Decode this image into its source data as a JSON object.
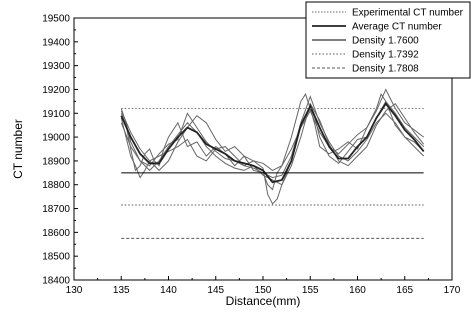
{
  "chart_data": {
    "type": "line",
    "xlabel": "Distance(mm)",
    "ylabel": "CT number",
    "xlim": [
      130,
      170
    ],
    "ylim": [
      18400,
      19500
    ],
    "x_ticks": [
      130,
      135,
      140,
      145,
      150,
      155,
      160,
      165,
      170
    ],
    "y_ticks": [
      18400,
      18500,
      18600,
      18700,
      18800,
      18900,
      19000,
      19100,
      19200,
      19300,
      19400,
      19500
    ],
    "grid": false,
    "legend_position": "top-right",
    "legend": [
      {
        "label": "Experimental CT number",
        "series": "experimental"
      },
      {
        "label": "Average CT number",
        "series": "average"
      },
      {
        "label": "Density 1.7600",
        "series": "d17600"
      },
      {
        "label": "Density 1.7392",
        "series": "d17392"
      },
      {
        "label": "Density 1.7808",
        "series": "d17808"
      }
    ],
    "series": [
      {
        "id": "experimental",
        "name": "Experimental CT number",
        "kind": "multi",
        "color": "#666666",
        "curves": [
          {
            "x": [
              135,
              135.5,
              136,
              136.5,
              137,
              137.5,
              138,
              138.5,
              139,
              139.5,
              140,
              141,
              142,
              143,
              144,
              145,
              146,
              147,
              148,
              149,
              150,
              150.5,
              151,
              151.5,
              152,
              153,
              154,
              154.5,
              155,
              155.5,
              156,
              157,
              158,
              159,
              160,
              161,
              162,
              162.5,
              163,
              164,
              165,
              166,
              167
            ],
            "y": [
              19100,
              19050,
              18950,
              18860,
              18880,
              18930,
              18950,
              18900,
              18880,
              18950,
              19000,
              19060,
              18960,
              18980,
              18920,
              18960,
              18930,
              18880,
              18920,
              18860,
              18850,
              18800,
              18780,
              18850,
              18880,
              19000,
              19150,
              19180,
              19120,
              19050,
              18960,
              18930,
              18950,
              18980,
              18950,
              19040,
              19120,
              19180,
              19150,
              19050,
              19000,
              18960,
              18920
            ]
          },
          {
            "x": [
              135,
              135.5,
              136,
              136.5,
              137,
              137.5,
              138,
              139,
              140,
              141,
              142,
              143,
              144,
              145,
              146,
              147,
              148,
              149,
              150,
              150.5,
              151,
              151.5,
              152,
              153,
              154,
              155,
              155.5,
              156,
              157,
              158,
              159,
              160,
              161,
              162,
              163,
              164,
              165,
              166,
              167
            ],
            "y": [
              19080,
              19000,
              18920,
              18880,
              18830,
              18860,
              18900,
              18920,
              18940,
              18960,
              18990,
              18920,
              18900,
              18950,
              18960,
              18920,
              18880,
              18900,
              18870,
              18760,
              18720,
              18740,
              18800,
              18900,
              19050,
              19120,
              19080,
              19000,
              18920,
              18890,
              18940,
              18990,
              19000,
              19080,
              19150,
              19100,
              19040,
              19000,
              18960
            ]
          },
          {
            "x": [
              135,
              135.5,
              136,
              137,
              138,
              139,
              140,
              141,
              142,
              143,
              144,
              145,
              146,
              147,
              148,
              149,
              150,
              151,
              152,
              153,
              154,
              155,
              156,
              157,
              158,
              159,
              160,
              161,
              162,
              163,
              164,
              165,
              166,
              167
            ],
            "y": [
              19120,
              19060,
              18980,
              18900,
              18860,
              18900,
              18960,
              19010,
              19060,
              19020,
              18960,
              18920,
              18890,
              18870,
              18860,
              18880,
              18840,
              18820,
              18800,
              18880,
              19000,
              19140,
              19070,
              18970,
              18900,
              18880,
              18920,
              18960,
              19050,
              19110,
              19140,
              19080,
              19020,
              18970
            ]
          },
          {
            "x": [
              135,
              136,
              137,
              138,
              139,
              140,
              141,
              142,
              143,
              144,
              145,
              146,
              147,
              148,
              149,
              150,
              151,
              152,
              153,
              154,
              155,
              156,
              157,
              158,
              159,
              160,
              161,
              162,
              163,
              164,
              165,
              166,
              167
            ],
            "y": [
              19060,
              18960,
              18900,
              18880,
              18930,
              18970,
              18990,
              19100,
              19040,
              18980,
              18940,
              18910,
              18900,
              18880,
              18870,
              18850,
              18830,
              18840,
              18920,
              19060,
              19170,
              19060,
              18980,
              18920,
              18900,
              18940,
              18990,
              19060,
              19100,
              19060,
              19000,
              18980,
              18940
            ]
          },
          {
            "x": [
              135,
              136,
              137,
              138,
              139,
              140,
              141,
              142,
              143,
              144,
              145,
              146,
              147,
              148,
              149,
              150,
              151,
              152,
              153,
              154,
              155,
              156,
              157,
              158,
              159,
              160,
              161,
              162,
              163,
              164,
              165,
              166,
              167
            ],
            "y": [
              19110,
              19020,
              18950,
              18900,
              18860,
              18900,
              18980,
              19040,
              19090,
              19060,
              18990,
              18940,
              18960,
              18920,
              18900,
              18890,
              18860,
              18880,
              18950,
              19040,
              19110,
              19020,
              18960,
              18930,
              18970,
              19010,
              19040,
              19110,
              19200,
              19120,
              19060,
              19030,
              19000
            ]
          }
        ]
      },
      {
        "id": "average",
        "name": "Average CT number",
        "kind": "line",
        "color": "#222222",
        "x": [
          135,
          136,
          137,
          138,
          139,
          140,
          141,
          142,
          143,
          144,
          145,
          146,
          147,
          148,
          149,
          150,
          151,
          152,
          153,
          154,
          155,
          156,
          157,
          158,
          159,
          160,
          161,
          162,
          163,
          164,
          165,
          166,
          167
        ],
        "y": [
          19090,
          19000,
          18930,
          18890,
          18890,
          18950,
          19000,
          19040,
          19020,
          18970,
          18950,
          18930,
          18900,
          18890,
          18880,
          18860,
          18810,
          18820,
          18900,
          19050,
          19130,
          19040,
          18960,
          18910,
          18910,
          18960,
          19000,
          19080,
          19140,
          19090,
          19030,
          18990,
          18940
        ]
      },
      {
        "id": "d17600",
        "name": "Density 1.7600",
        "kind": "hline",
        "color": "#000000",
        "y": 18850,
        "x_range": [
          135,
          167
        ]
      },
      {
        "id": "d17392",
        "name": "Density 1.7392",
        "kind": "hline",
        "color": "#555555",
        "y": 18715,
        "x_range": [
          135,
          167
        ]
      },
      {
        "id": "d17808",
        "name": "Density 1.7808",
        "kind": "hline",
        "color": "#555555",
        "y": 18575,
        "x_range": [
          135,
          167
        ]
      },
      {
        "id": "upper",
        "kind": "hline",
        "color": "#777777",
        "y": 19120,
        "x_range": [
          135,
          167
        ]
      }
    ]
  }
}
